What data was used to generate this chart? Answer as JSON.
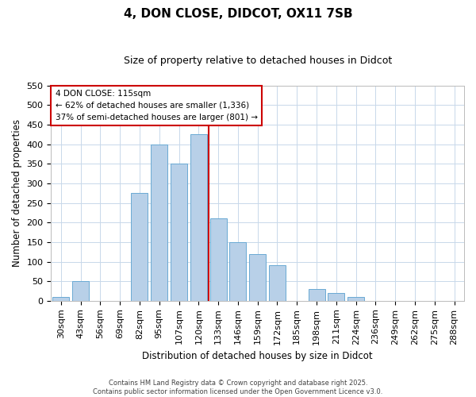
{
  "title": "4, DON CLOSE, DIDCOT, OX11 7SB",
  "subtitle": "Size of property relative to detached houses in Didcot",
  "xlabel": "Distribution of detached houses by size in Didcot",
  "ylabel": "Number of detached properties",
  "categories": [
    "30sqm",
    "43sqm",
    "56sqm",
    "69sqm",
    "82sqm",
    "95sqm",
    "107sqm",
    "120sqm",
    "133sqm",
    "146sqm",
    "159sqm",
    "172sqm",
    "185sqm",
    "198sqm",
    "211sqm",
    "224sqm",
    "236sqm",
    "249sqm",
    "262sqm",
    "275sqm",
    "288sqm"
  ],
  "values": [
    10,
    50,
    0,
    0,
    275,
    400,
    350,
    425,
    210,
    150,
    120,
    90,
    0,
    30,
    20,
    10,
    0,
    0,
    0,
    0,
    0
  ],
  "bar_color": "#b8d0e8",
  "bar_edge_color": "#6aaad4",
  "background_color": "#ffffff",
  "grid_color": "#c8d8ea",
  "annotation_title": "4 DON CLOSE: 115sqm",
  "annotation_line1": "← 62% of detached houses are smaller (1,336)",
  "annotation_line2": "37% of semi-detached houses are larger (801) →",
  "annotation_box_color": "#ffffff",
  "annotation_box_edge": "#cc0000",
  "vline_color": "#cc0000",
  "footer_line1": "Contains HM Land Registry data © Crown copyright and database right 2025.",
  "footer_line2": "Contains public sector information licensed under the Open Government Licence v3.0.",
  "ylim": [
    0,
    550
  ],
  "yticks": [
    0,
    50,
    100,
    150,
    200,
    250,
    300,
    350,
    400,
    450,
    500,
    550
  ],
  "title_fontsize": 11,
  "subtitle_fontsize": 9,
  "ylabel_fontsize": 8.5,
  "xlabel_fontsize": 8.5,
  "tick_fontsize": 8,
  "annot_fontsize": 7.5,
  "footer_fontsize": 6
}
